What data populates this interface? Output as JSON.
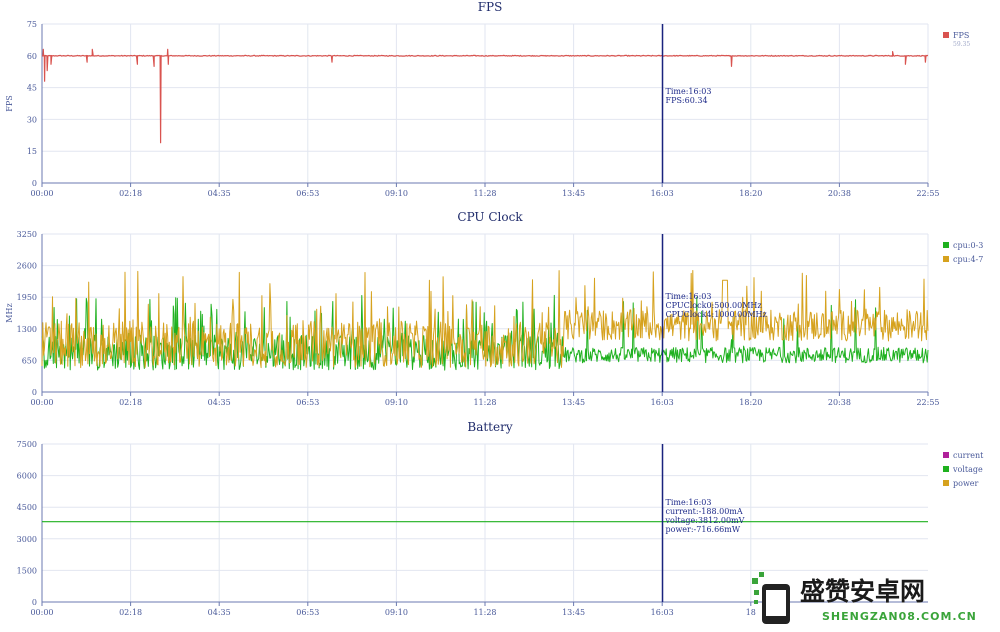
{
  "chart_data": [
    {
      "type": "line",
      "title": "FPS",
      "ylabel": "FPS",
      "ylim": [
        0,
        75
      ],
      "yticks": [
        "0",
        "15",
        "30",
        "45",
        "60",
        "75"
      ],
      "xticks": [
        "00:00",
        "02:18",
        "04:35",
        "06:53",
        "09:10",
        "11:28",
        "13:45",
        "16:03",
        "18:20",
        "20:38",
        "22:55"
      ],
      "x_range_minutes": [
        0,
        1375
      ],
      "grid": true,
      "legend_position": "right",
      "series": [
        {
          "name": "FPS",
          "legend_sub": "59.35",
          "color": "#d9534f",
          "baseline": 60,
          "noise": 0.4,
          "dips": [
            [
              4,
              48
            ],
            [
              8,
              53
            ],
            [
              14,
              56
            ],
            [
              70,
              57
            ],
            [
              148,
              56
            ],
            [
              174,
              55
            ],
            [
              184,
              19
            ],
            [
              196,
              56
            ],
            [
              450,
              57
            ],
            [
              1070,
              55
            ],
            [
              1340,
              56
            ],
            [
              1371,
              57
            ]
          ],
          "spikes": [
            [
              2,
              63
            ],
            [
              78,
              63
            ],
            [
              195,
              63
            ],
            [
              1320,
              62
            ]
          ]
        }
      ],
      "marker": {
        "x_minutes": 963,
        "label_time": "Time:16:03",
        "lines": [
          "FPS:60.34"
        ]
      }
    },
    {
      "type": "line",
      "title": "CPU Clock",
      "ylabel": "MHz",
      "ylim": [
        0,
        3250
      ],
      "yticks": [
        "0",
        "650",
        "1300",
        "1950",
        "2600",
        "3250"
      ],
      "xticks": [
        "00:00",
        "02:18",
        "04:35",
        "06:53",
        "09:10",
        "11:28",
        "13:45",
        "16:03",
        "18:20",
        "20:38",
        "22:55"
      ],
      "x_range_minutes": [
        0,
        1375
      ],
      "grid": true,
      "legend_position": "right",
      "series": [
        {
          "name": "cpu:0-3",
          "color": "#1fb11f",
          "low": 450,
          "mid": 900,
          "high": 2000,
          "late_low": 600,
          "late_mid": 800
        },
        {
          "name": "cpu:4-7",
          "color": "#d6a21e",
          "low": 500,
          "mid": 1100,
          "high": 2500,
          "late_low": 1050,
          "late_mid": 1450
        }
      ],
      "marker": {
        "x_minutes": 963,
        "label_time": "Time:16:03",
        "lines": [
          "CPUClock0:500.00MHz",
          "CPUClock4:1000.00MHz"
        ]
      }
    },
    {
      "type": "line",
      "title": "Battery",
      "ylabel": "",
      "ylim": [
        0,
        7500
      ],
      "yticks": [
        "0",
        "1500",
        "3000",
        "4500",
        "6000",
        "7500"
      ],
      "xticks": [
        "00:00",
        "02:18",
        "04:35",
        "06:53",
        "09:10",
        "11:28",
        "13:45",
        "16:03",
        "18"
      ],
      "x_range_minutes": [
        0,
        1375
      ],
      "grid": true,
      "legend_position": "right",
      "series": [
        {
          "name": "current",
          "color": "#b0209a",
          "value": null
        },
        {
          "name": "voltage",
          "color": "#1fb11f",
          "value": 3812
        },
        {
          "name": "power",
          "color": "#d6a21e",
          "value": null
        }
      ],
      "marker": {
        "x_minutes": 963,
        "label_time": "Time:16:03",
        "lines": [
          "current:-188.00mA",
          "voltage:3812.00mV",
          "power:-716.66mW"
        ]
      }
    }
  ],
  "watermark": {
    "brand": "盛赞安卓网",
    "url": "SHENGZAN08.COM.CN",
    "colors": {
      "brand": "#1a1a1a",
      "url": "#3aa43a",
      "icon_green": "#3aa43a",
      "icon_dark": "#222222"
    }
  }
}
